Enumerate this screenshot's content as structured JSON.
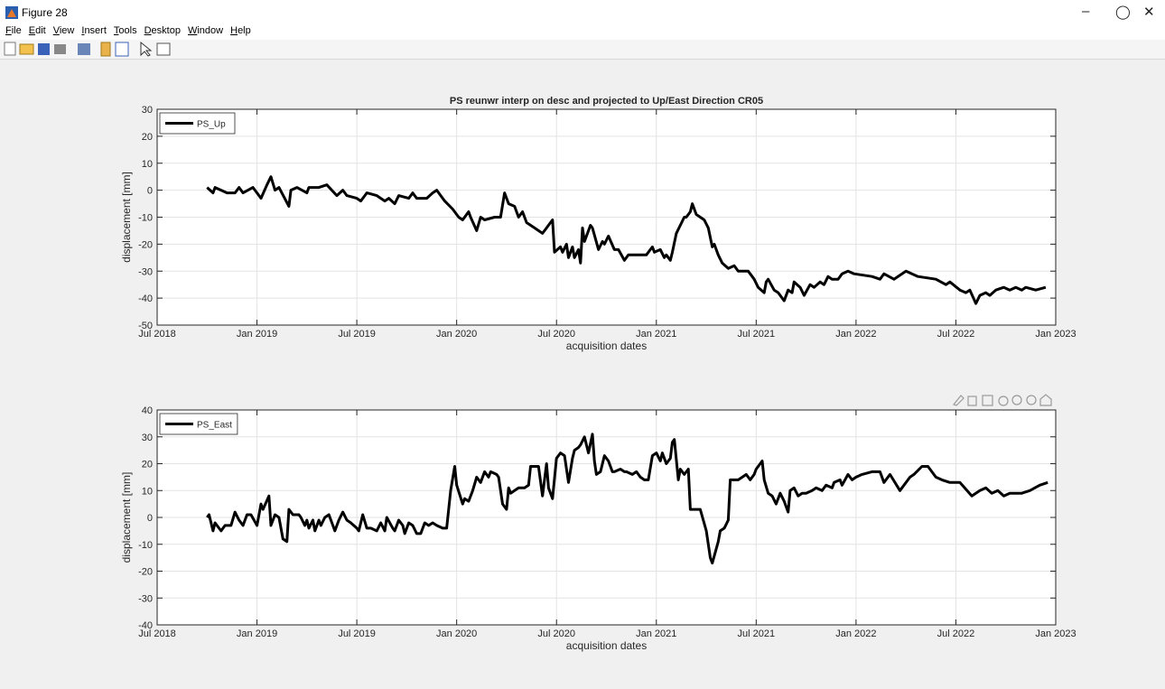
{
  "window": {
    "title": "Figure 28",
    "menu": [
      "File",
      "Edit",
      "View",
      "Insert",
      "Tools",
      "Desktop",
      "Window",
      "Help"
    ]
  },
  "chart_data": [
    {
      "type": "line",
      "title": "PS reunwr interp on desc and projected to Up/East Direction CR05",
      "xlabel": "acquisition dates",
      "ylabel": "displacement [mm]",
      "xlim": [
        2018.5,
        2023.0
      ],
      "xticks": [
        {
          "value": 2018.5,
          "label": "Jul 2018"
        },
        {
          "value": 2019.0,
          "label": "Jan 2019"
        },
        {
          "value": 2019.5,
          "label": "Jul 2019"
        },
        {
          "value": 2020.0,
          "label": "Jan 2020"
        },
        {
          "value": 2020.5,
          "label": "Jul 2020"
        },
        {
          "value": 2021.0,
          "label": "Jan 2021"
        },
        {
          "value": 2021.5,
          "label": "Jul 2021"
        },
        {
          "value": 2022.0,
          "label": "Jan 2022"
        },
        {
          "value": 2022.5,
          "label": "Jul 2022"
        },
        {
          "value": 2023.0,
          "label": "Jan 2023"
        }
      ],
      "ylim": [
        -50,
        30
      ],
      "yticks": [
        -50,
        -40,
        -30,
        -20,
        -10,
        0,
        10,
        20,
        30
      ],
      "grid": true,
      "legend": "northwest",
      "x": [
        2018.75,
        2018.78,
        2018.79,
        2018.85,
        2018.89,
        2018.91,
        2018.93,
        2018.98,
        2019.0,
        2019.02,
        2019.05,
        2019.07,
        2019.09,
        2019.11,
        2019.16,
        2019.17,
        2019.2,
        2019.25,
        2019.26,
        2019.31,
        2019.35,
        2019.4,
        2019.43,
        2019.45,
        2019.5,
        2019.52,
        2019.55,
        2019.6,
        2019.64,
        2019.66,
        2019.69,
        2019.71,
        2019.76,
        2019.78,
        2019.8,
        2019.85,
        2019.88,
        2019.9,
        2019.94,
        2019.98,
        2020.01,
        2020.03,
        2020.06,
        2020.07,
        2020.1,
        2020.12,
        2020.14,
        2020.19,
        2020.22,
        2020.24,
        2020.26,
        2020.29,
        2020.31,
        2020.33,
        2020.35,
        2020.39,
        2020.43,
        2020.45,
        2020.48,
        2020.49,
        2020.52,
        2020.53,
        2020.55,
        2020.56,
        2020.58,
        2020.59,
        2020.61,
        2020.62,
        2020.63,
        2020.64,
        2020.67,
        2020.68,
        2020.71,
        2020.73,
        2020.74,
        2020.76,
        2020.79,
        2020.81,
        2020.84,
        2020.86,
        2020.95,
        2020.98,
        2020.99,
        2021.02,
        2021.04,
        2021.05,
        2021.07,
        2021.08,
        2021.1,
        2021.12,
        2021.14,
        2021.15,
        2021.17,
        2021.18,
        2021.2,
        2021.24,
        2021.26,
        2021.28,
        2021.29,
        2021.31,
        2021.33,
        2021.36,
        2021.39,
        2021.41,
        2021.46,
        2021.49,
        2021.51,
        2021.54,
        2021.55,
        2021.56,
        2021.59,
        2021.61,
        2021.64,
        2021.66,
        2021.68,
        2021.69,
        2021.72,
        2021.74,
        2021.77,
        2021.79,
        2021.82,
        2021.84,
        2021.86,
        2021.88,
        2021.91,
        2021.93,
        2021.96,
        2021.99,
        2022.08,
        2022.12,
        2022.14,
        2022.19,
        2022.25,
        2022.31,
        2022.4,
        2022.45,
        2022.47,
        2022.52,
        2022.55,
        2022.57,
        2022.6,
        2022.62,
        2022.65,
        2022.67,
        2022.7,
        2022.74,
        2022.77,
        2022.8,
        2022.83,
        2022.85,
        2022.9,
        2022.95
      ],
      "series": [
        {
          "name": "PS_Up",
          "color": "#000000",
          "values": [
            1,
            -1,
            1,
            -1,
            -1,
            1,
            -1,
            1,
            -1,
            -3,
            2,
            5,
            0,
            1,
            -6,
            0,
            1,
            -1,
            1,
            1,
            2,
            -2,
            0,
            -2,
            -3,
            -4,
            -1,
            -2,
            -4,
            -3,
            -5,
            -2,
            -3,
            -1,
            -3,
            -3,
            -1,
            0,
            -4,
            -7,
            -10,
            -11,
            -8,
            -10,
            -15,
            -10,
            -11,
            -10,
            -10,
            -1,
            -5,
            -6,
            -10,
            -8,
            -12,
            -14,
            -16,
            -14,
            -11,
            -23,
            -21,
            -23,
            -20,
            -25,
            -21,
            -25,
            -22,
            -27,
            -14,
            -19,
            -13,
            -14,
            -22,
            -19,
            -20,
            -17,
            -22,
            -22,
            -26,
            -24,
            -24,
            -21,
            -23,
            -22,
            -25,
            -24,
            -26,
            -23,
            -16,
            -13,
            -10,
            -10,
            -8,
            -5,
            -9,
            -11,
            -14,
            -21,
            -20,
            -24,
            -27,
            -29,
            -28,
            -30,
            -30,
            -33,
            -36,
            -38,
            -34,
            -33,
            -37,
            -38,
            -41,
            -37,
            -38,
            -34,
            -36,
            -39,
            -35,
            -36,
            -34,
            -35,
            -32,
            -33,
            -33,
            -31,
            -30,
            -31,
            -32,
            -33,
            -31,
            -33,
            -30,
            -32,
            -33,
            -35,
            -34,
            -37,
            -38,
            -37,
            -42,
            -39,
            -38,
            -39,
            -37,
            -36,
            -37,
            -36,
            -37,
            -36,
            -37,
            -36
          ]
        }
      ]
    },
    {
      "type": "line",
      "xlabel": "acquisition dates",
      "ylabel": "displacement [mm]",
      "xlim": [
        2018.5,
        2023.0
      ],
      "xticks": [
        {
          "value": 2018.5,
          "label": "Jul 2018"
        },
        {
          "value": 2019.0,
          "label": "Jan 2019"
        },
        {
          "value": 2019.5,
          "label": "Jul 2019"
        },
        {
          "value": 2020.0,
          "label": "Jan 2020"
        },
        {
          "value": 2020.5,
          "label": "Jul 2020"
        },
        {
          "value": 2021.0,
          "label": "Jan 2021"
        },
        {
          "value": 2021.5,
          "label": "Jul 2021"
        },
        {
          "value": 2022.0,
          "label": "Jan 2022"
        },
        {
          "value": 2022.5,
          "label": "Jul 2022"
        },
        {
          "value": 2023.0,
          "label": "Jan 2023"
        }
      ],
      "ylim": [
        -40,
        40
      ],
      "yticks": [
        -40,
        -30,
        -20,
        -10,
        0,
        10,
        20,
        30,
        40
      ],
      "grid": true,
      "legend": "northwest",
      "x": [
        2018.75,
        2018.76,
        2018.78,
        2018.79,
        2018.82,
        2018.84,
        2018.87,
        2018.89,
        2018.91,
        2018.93,
        2018.95,
        2018.97,
        2019.0,
        2019.02,
        2019.03,
        2019.06,
        2019.07,
        2019.09,
        2019.11,
        2019.13,
        2019.15,
        2019.16,
        2019.18,
        2019.21,
        2019.22,
        2019.24,
        2019.25,
        2019.26,
        2019.28,
        2019.29,
        2019.31,
        2019.32,
        2019.34,
        2019.36,
        2019.38,
        2019.39,
        2019.41,
        2019.43,
        2019.45,
        2019.47,
        2019.5,
        2019.51,
        2019.53,
        2019.55,
        2019.57,
        2019.6,
        2019.62,
        2019.64,
        2019.65,
        2019.68,
        2019.69,
        2019.71,
        2019.73,
        2019.74,
        2019.76,
        2019.78,
        2019.8,
        2019.82,
        2019.84,
        2019.86,
        2019.88,
        2019.9,
        2019.93,
        2019.95,
        2019.97,
        2019.99,
        2020.0,
        2020.03,
        2020.04,
        2020.06,
        2020.08,
        2020.1,
        2020.12,
        2020.14,
        2020.16,
        2020.17,
        2020.2,
        2020.21,
        2020.23,
        2020.25,
        2020.26,
        2020.27,
        2020.29,
        2020.31,
        2020.34,
        2020.36,
        2020.37,
        2020.4,
        2020.41,
        2020.43,
        2020.45,
        2020.46,
        2020.48,
        2020.5,
        2020.52,
        2020.54,
        2020.56,
        2020.58,
        2020.59,
        2020.61,
        2020.62,
        2020.64,
        2020.66,
        2020.68,
        2020.69,
        2020.7,
        2020.72,
        2020.74,
        2020.76,
        2020.78,
        2020.79,
        2020.82,
        2020.84,
        2020.85,
        2020.88,
        2020.9,
        2020.92,
        2020.94,
        2020.96,
        2020.98,
        2021.0,
        2021.02,
        2021.03,
        2021.05,
        2021.07,
        2021.08,
        2021.09,
        2021.11,
        2021.12,
        2021.14,
        2021.16,
        2021.17,
        2021.2,
        2021.22,
        2021.25,
        2021.27,
        2021.28,
        2021.31,
        2021.32,
        2021.34,
        2021.36,
        2021.37,
        2021.39,
        2021.41,
        2021.43,
        2021.45,
        2021.47,
        2021.49,
        2021.5,
        2021.53,
        2021.54,
        2021.56,
        2021.58,
        2021.6,
        2021.62,
        2021.64,
        2021.66,
        2021.67,
        2021.69,
        2021.71,
        2021.73,
        2021.75,
        2021.78,
        2021.8,
        2021.83,
        2021.85,
        2021.88,
        2021.89,
        2021.92,
        2021.93,
        2021.96,
        2021.98,
        2022.0,
        2022.03,
        2022.08,
        2022.12,
        2022.14,
        2022.17,
        2022.22,
        2022.27,
        2022.29,
        2022.33,
        2022.36,
        2022.4,
        2022.43,
        2022.47,
        2022.52,
        2022.58,
        2022.62,
        2022.65,
        2022.68,
        2022.71,
        2022.74,
        2022.77,
        2022.83,
        2022.87,
        2022.92,
        2022.96
      ],
      "series": [
        {
          "name": "PS_East",
          "color": "#000000",
          "values": [
            0,
            1,
            -5,
            -2,
            -5,
            -3,
            -3,
            2,
            -1,
            -3,
            1,
            1,
            -3,
            5,
            3,
            8,
            -3,
            1,
            0,
            -8,
            -9,
            3,
            1,
            1,
            0,
            -3,
            -1,
            -4,
            -1,
            -5,
            -1,
            -3,
            0,
            1,
            -3,
            -5,
            -1,
            2,
            -1,
            -2,
            -4,
            -5,
            1,
            -4,
            -4,
            -5,
            -2,
            -5,
            0,
            -4,
            -5,
            -1,
            -3,
            -6,
            -2,
            -3,
            -6,
            -6,
            -2,
            -3,
            -2,
            -3,
            -4,
            -4,
            10,
            19,
            12,
            5,
            7,
            6,
            10,
            15,
            13,
            17,
            15,
            17,
            16,
            15,
            5,
            3,
            11,
            9,
            10,
            11,
            11,
            12,
            19,
            19,
            19,
            8,
            20,
            11,
            7,
            22,
            24,
            23,
            13,
            22,
            25,
            26,
            27,
            30,
            24,
            31,
            21,
            16,
            17,
            23,
            21,
            17,
            17,
            18,
            17,
            17,
            16,
            17,
            15,
            14,
            14,
            23,
            24,
            21,
            24,
            20,
            22,
            28,
            29,
            14,
            18,
            16,
            18,
            3,
            3,
            3,
            -5,
            -15,
            -17,
            -9,
            -5,
            -4,
            -1,
            14,
            14,
            14,
            15,
            16,
            14,
            16,
            18,
            21,
            14,
            9,
            8,
            5,
            9,
            6,
            2,
            10,
            11,
            8,
            9,
            9,
            10,
            11,
            10,
            12,
            11,
            13,
            14,
            12,
            16,
            14,
            15,
            16,
            17,
            17,
            13,
            16,
            10,
            15,
            16,
            19,
            19,
            15,
            14,
            13,
            13,
            8,
            10,
            11,
            9,
            10,
            8,
            9,
            9,
            10,
            12,
            13
          ]
        }
      ]
    }
  ]
}
